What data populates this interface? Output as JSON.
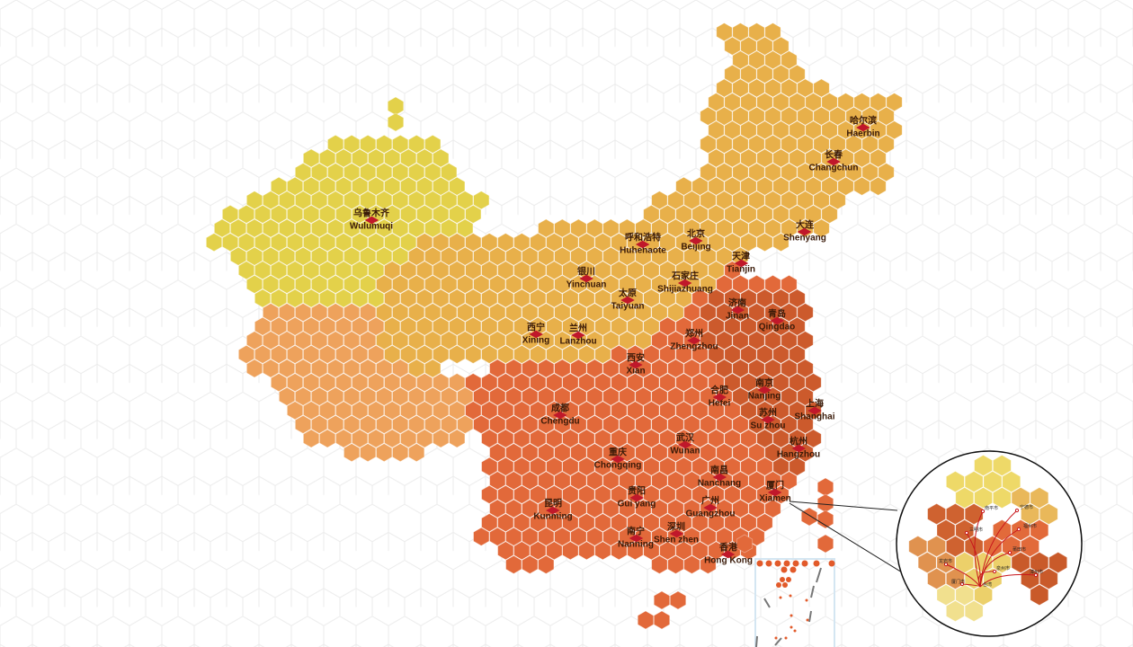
{
  "colors": {
    "background": "#ffffff",
    "grid_line": "#e9e9e9",
    "northwest_yellow": "#e3d14a",
    "north_amber": "#e8b04a",
    "west_light_orange": "#eea25c",
    "south_orange": "#e2693a",
    "east_dark_orange": "#cc5a2c",
    "marker_red": "#c0182a",
    "inset_border": "#d4e6f2"
  },
  "cities": [
    {
      "zh": "乌鲁木齐",
      "en": "Wulumuqi"
    },
    {
      "zh": "哈尔滨",
      "en": "Haerbin"
    },
    {
      "zh": "长春",
      "en": "Changchun"
    },
    {
      "zh": "大连",
      "en": "Shenyang"
    },
    {
      "zh": "呼和浩特",
      "en": "Huhehaote"
    },
    {
      "zh": "北京",
      "en": "Beijing"
    },
    {
      "zh": "天津",
      "en": "Tianjin"
    },
    {
      "zh": "银川",
      "en": "Yinchuan"
    },
    {
      "zh": "石家庄",
      "en": "Shijiazhuang"
    },
    {
      "zh": "太原",
      "en": "Taiyuan"
    },
    {
      "zh": "济南",
      "en": "Jinan"
    },
    {
      "zh": "青岛",
      "en": "Qingdao"
    },
    {
      "zh": "西宁",
      "en": "Xining"
    },
    {
      "zh": "兰州",
      "en": "Lanzhou"
    },
    {
      "zh": "郑州",
      "en": "Zhengzhou"
    },
    {
      "zh": "西安",
      "en": "Xian"
    },
    {
      "zh": "合肥",
      "en": "Hefei"
    },
    {
      "zh": "南京",
      "en": "Nanjing"
    },
    {
      "zh": "苏州",
      "en": "Su zhou"
    },
    {
      "zh": "上海",
      "en": "Shanghai"
    },
    {
      "zh": "成都",
      "en": "Chengdu"
    },
    {
      "zh": "杭州",
      "en": "Hangzhou"
    },
    {
      "zh": "武汉",
      "en": "Wuhan"
    },
    {
      "zh": "重庆",
      "en": "Chongqing"
    },
    {
      "zh": "南昌",
      "en": "Nanchang"
    },
    {
      "zh": "厦门",
      "en": "Xiamen"
    },
    {
      "zh": "贵阳",
      "en": "Gui yang"
    },
    {
      "zh": "广州",
      "en": "Guangzhou"
    },
    {
      "zh": "昆明",
      "en": "Kunming"
    },
    {
      "zh": "深圳",
      "en": "Shen zhen"
    },
    {
      "zh": "南宁",
      "en": "Nanning"
    },
    {
      "zh": "香港",
      "en": "Hong Kong"
    }
  ],
  "fujian_inset": {
    "cities": [
      "南平市",
      "宁德市",
      "三明市",
      "福州市",
      "莆田市",
      "龙岩市",
      "泉州市",
      "漳州市",
      "厦门市",
      "台湾"
    ]
  }
}
